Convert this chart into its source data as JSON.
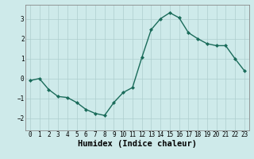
{
  "x": [
    0,
    1,
    2,
    3,
    4,
    5,
    6,
    7,
    8,
    9,
    10,
    11,
    12,
    13,
    14,
    15,
    16,
    17,
    18,
    19,
    20,
    21,
    22,
    23
  ],
  "y": [
    -0.1,
    0.0,
    -0.55,
    -0.9,
    -0.95,
    -1.2,
    -1.55,
    -1.75,
    -1.85,
    -1.2,
    -0.7,
    -0.45,
    1.05,
    2.45,
    3.0,
    3.3,
    3.05,
    2.3,
    2.0,
    1.75,
    1.65,
    1.65,
    1.0,
    0.4
  ],
  "xlabel": "Humidex (Indice chaleur)",
  "line_color": "#1a6b5a",
  "marker": "D",
  "marker_size": 2.0,
  "line_width": 1.0,
  "bg_color": "#ceeaea",
  "grid_color": "#aecece",
  "tick_label_fontsize": 5.5,
  "xlabel_fontsize": 7.5,
  "ylim": [
    -2.6,
    3.7
  ],
  "xlim": [
    -0.5,
    23.5
  ],
  "yticks": [
    -2,
    -1,
    0,
    1,
    2,
    3
  ],
  "xticks": [
    0,
    1,
    2,
    3,
    4,
    5,
    6,
    7,
    8,
    9,
    10,
    11,
    12,
    13,
    14,
    15,
    16,
    17,
    18,
    19,
    20,
    21,
    22,
    23
  ]
}
